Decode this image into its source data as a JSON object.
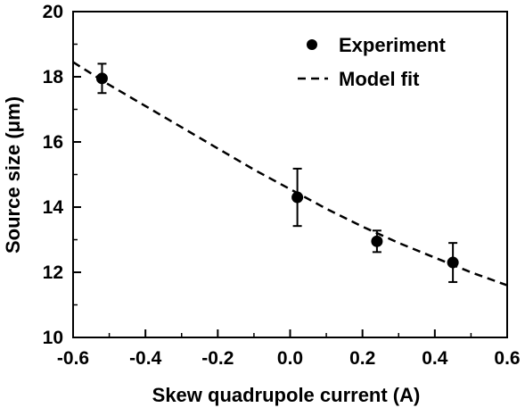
{
  "chart_data": {
    "type": "scatter",
    "title": "",
    "xlabel": "Skew quadrupole current (A)",
    "ylabel": "Source size (μm)",
    "xlim": [
      -0.6,
      0.6
    ],
    "ylim": [
      10,
      20
    ],
    "x_ticks": [
      "-0.6",
      "-0.4",
      "-0.2",
      "0.0",
      "0.2",
      "0.4",
      "0.6"
    ],
    "y_ticks": [
      "10",
      "12",
      "14",
      "16",
      "18",
      "20"
    ],
    "grid": false,
    "legend_position": "top-right",
    "series": [
      {
        "name": "Experiment",
        "kind": "points-with-error-bars",
        "x": [
          -0.52,
          0.02,
          0.24,
          0.45
        ],
        "y": [
          17.95,
          14.3,
          12.95,
          12.3
        ],
        "yerr": [
          0.45,
          0.88,
          0.33,
          0.6
        ]
      },
      {
        "name": "Model fit",
        "kind": "dashed-line",
        "x": [
          -0.6,
          -0.5,
          -0.4,
          -0.3,
          -0.2,
          -0.1,
          0.0,
          0.1,
          0.2,
          0.3,
          0.4,
          0.5,
          0.6
        ],
        "y": [
          18.45,
          17.75,
          17.1,
          16.45,
          15.8,
          15.15,
          14.55,
          13.95,
          13.4,
          12.9,
          12.45,
          12.0,
          11.6
        ]
      }
    ]
  }
}
